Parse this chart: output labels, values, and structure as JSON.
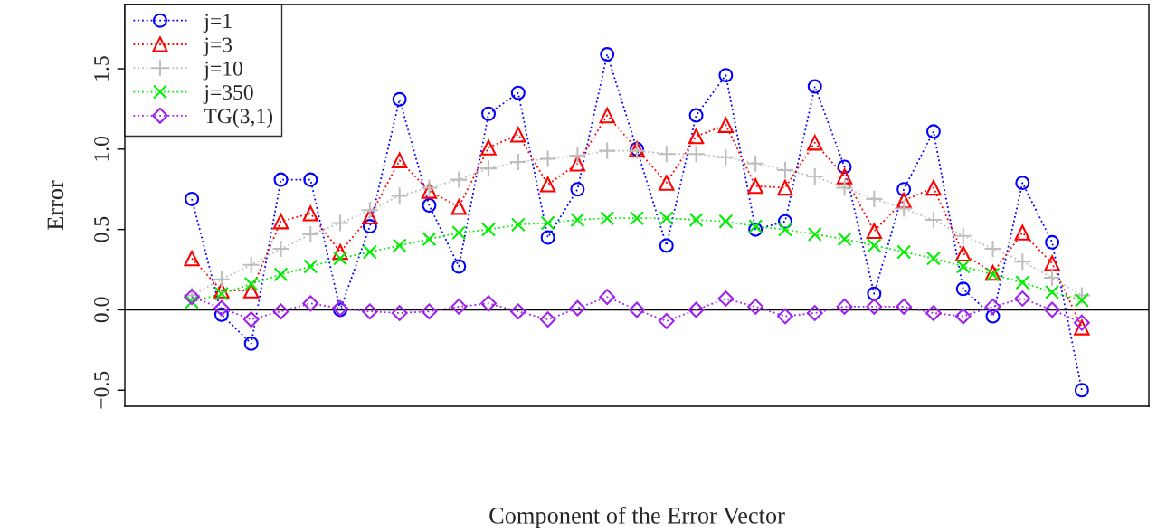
{
  "chart_data": {
    "type": "line",
    "xlabel": "Component of the Error Vector",
    "ylabel": "Error",
    "categories": [
      null,
      null,
      null,
      null,
      null,
      null,
      null,
      null,
      null,
      null,
      null,
      null,
      null,
      null,
      null,
      null,
      null,
      null,
      null,
      null,
      null,
      null,
      null,
      null,
      null,
      null,
      null,
      null,
      null,
      null,
      null
    ],
    "series": [
      {
        "name": "j=1",
        "color": "#0000ff",
        "marker": "circle",
        "line_style": "dotted",
        "values": [
          0.69,
          -0.03,
          -0.21,
          0.81,
          0.81,
          0.0,
          0.52,
          1.31,
          0.65,
          0.27,
          1.22,
          1.35,
          0.45,
          0.75,
          1.59,
          1.0,
          0.4,
          1.21,
          1.46,
          0.5,
          0.55,
          1.39,
          0.89,
          0.1,
          0.75,
          1.11,
          0.13,
          -0.04,
          0.79,
          0.42,
          -0.5
        ]
      },
      {
        "name": "j=3",
        "color": "#ff0000",
        "marker": "triangle",
        "line_style": "dotted",
        "values": [
          0.32,
          0.12,
          0.12,
          0.55,
          0.6,
          0.36,
          0.58,
          0.93,
          0.74,
          0.64,
          1.01,
          1.09,
          0.78,
          0.91,
          1.21,
          1.0,
          0.79,
          1.08,
          1.15,
          0.77,
          0.76,
          1.04,
          0.83,
          0.49,
          0.68,
          0.76,
          0.35,
          0.23,
          0.48,
          0.29,
          -0.11
        ]
      },
      {
        "name": "j=10",
        "color": "#bebebe",
        "marker": "plus",
        "line_style": "dotted",
        "values": [
          0.09,
          0.19,
          0.28,
          0.38,
          0.47,
          0.54,
          0.62,
          0.71,
          0.76,
          0.81,
          0.88,
          0.92,
          0.94,
          0.96,
          0.99,
          0.99,
          0.97,
          0.97,
          0.95,
          0.91,
          0.87,
          0.83,
          0.76,
          0.69,
          0.63,
          0.56,
          0.46,
          0.38,
          0.3,
          0.2,
          0.09
        ]
      },
      {
        "name": "j=350",
        "color": "#00ee00",
        "marker": "cross",
        "line_style": "dotted",
        "values": [
          0.05,
          0.1,
          0.16,
          0.22,
          0.27,
          0.32,
          0.36,
          0.4,
          0.44,
          0.48,
          0.5,
          0.53,
          0.54,
          0.56,
          0.57,
          0.57,
          0.57,
          0.56,
          0.55,
          0.52,
          0.5,
          0.47,
          0.44,
          0.4,
          0.36,
          0.32,
          0.27,
          0.22,
          0.17,
          0.11,
          0.06
        ]
      },
      {
        "name": "TG(3,1)",
        "color": "#a020f0",
        "marker": "diamond",
        "line_style": "dotted",
        "values": [
          0.08,
          0.01,
          -0.06,
          -0.01,
          0.04,
          0.01,
          -0.01,
          -0.02,
          -0.01,
          0.02,
          0.04,
          -0.01,
          -0.06,
          0.01,
          0.08,
          0.0,
          -0.07,
          0.0,
          0.07,
          0.02,
          -0.04,
          -0.02,
          0.02,
          0.02,
          0.02,
          -0.02,
          -0.04,
          0.02,
          0.07,
          0.0,
          -0.08
        ]
      }
    ],
    "ylim": [
      -0.6,
      1.9
    ],
    "yticks": [
      {
        "value": -0.5,
        "label": "−0.5"
      },
      {
        "value": 0.0,
        "label": "0.0"
      },
      {
        "value": 0.5,
        "label": "0.5"
      },
      {
        "value": 1.0,
        "label": "1.0"
      },
      {
        "value": 1.5,
        "label": "1.5"
      }
    ],
    "tick_labels": "y",
    "ref_lines": [
      {
        "axis": "y",
        "value": 0,
        "color": "#000000",
        "line_style": "solid"
      }
    ],
    "grid": false,
    "legend": "top left"
  }
}
